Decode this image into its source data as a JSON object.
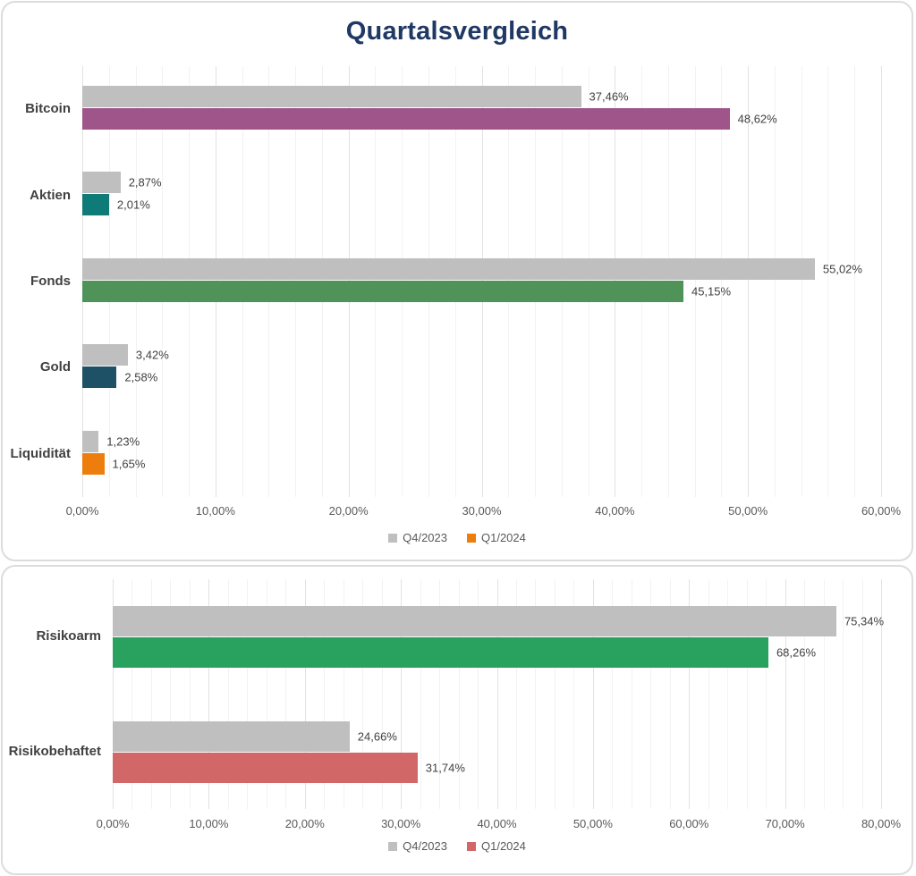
{
  "page": {
    "title": "Quartalsvergleich",
    "colors": {
      "title": "#1f3864",
      "panel_border": "#dcdcdc",
      "grid_minor": "#f2f2f2",
      "grid_major": "#e2e2e2",
      "category_text": "#404040",
      "axis_text": "#595959",
      "data_label_text": "#404040"
    }
  },
  "chart_data": [
    {
      "type": "bar",
      "orientation": "horizontal",
      "title": "Quartalsvergleich",
      "categories": [
        "Bitcoin",
        "Aktien",
        "Fonds",
        "Gold",
        "Liquidität"
      ],
      "series": [
        {
          "name": "Q4/2023",
          "color": "#bfbfbf",
          "legend_color": "#bfbfbf",
          "values": [
            37.46,
            2.87,
            55.02,
            3.42,
            1.23
          ],
          "labels": [
            "37,46%",
            "2,87%",
            "55,02%",
            "3,42%",
            "1,23%"
          ]
        },
        {
          "name": "Q1/2024",
          "colors": [
            "#a0558a",
            "#0f7b78",
            "#4f9359",
            "#1f5166",
            "#ed7d0c"
          ],
          "legend_color": "#ed7d0c",
          "values": [
            48.62,
            2.01,
            45.15,
            2.58,
            1.65
          ],
          "labels": [
            "48,62%",
            "2,01%",
            "45,15%",
            "2,58%",
            "1,65%"
          ]
        }
      ],
      "xlim": [
        0,
        60
      ],
      "xticks": [
        "0,00%",
        "10,00%",
        "20,00%",
        "30,00%",
        "40,00%",
        "50,00%",
        "60,00%"
      ],
      "xtick_step": 10,
      "minor_grid_step": 2,
      "grid": true,
      "legend_position": "bottom"
    },
    {
      "type": "bar",
      "orientation": "horizontal",
      "title": "",
      "categories": [
        "Risikoarm",
        "Risikobehaftet"
      ],
      "series": [
        {
          "name": "Q4/2023",
          "color": "#bfbfbf",
          "legend_color": "#bfbfbf",
          "values": [
            75.34,
            24.66
          ],
          "labels": [
            "75,34%",
            "24,66%"
          ]
        },
        {
          "name": "Q1/2024",
          "colors": [
            "#2aa25f",
            "#d16767"
          ],
          "legend_color": "#d16767",
          "values": [
            68.26,
            31.74
          ],
          "labels": [
            "68,26%",
            "31,74%"
          ]
        }
      ],
      "xlim": [
        0,
        80
      ],
      "xticks": [
        "0,00%",
        "10,00%",
        "20,00%",
        "30,00%",
        "40,00%",
        "50,00%",
        "60,00%",
        "70,00%",
        "80,00%"
      ],
      "xtick_step": 10,
      "minor_grid_step": 2,
      "grid": true,
      "legend_position": "bottom"
    }
  ]
}
